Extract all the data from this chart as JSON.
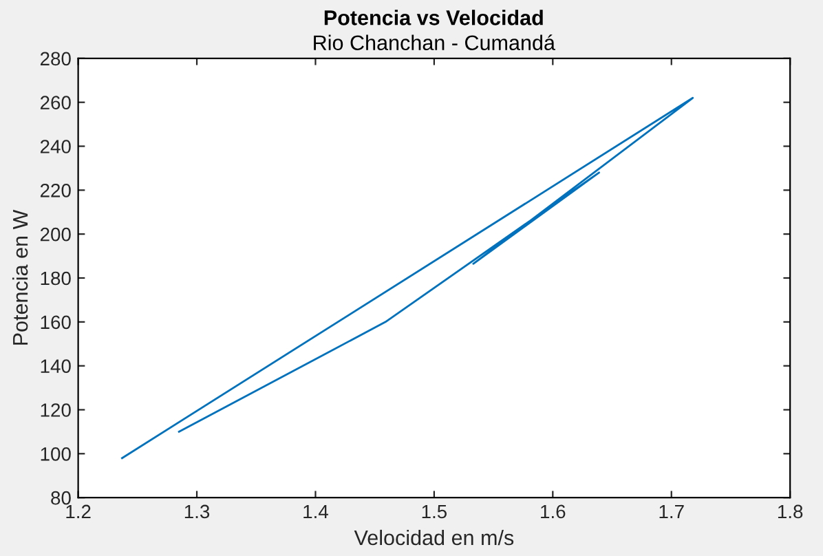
{
  "chart_data": {
    "type": "line",
    "title": "Potencia vs Velocidad",
    "subtitle": "Rio Chanchan - Cumandá",
    "xlabel": "Velocidad en m/s",
    "ylabel": "Potencia en W",
    "x": [
      1.237,
      1.718,
      1.533,
      1.639,
      1.459,
      1.285
    ],
    "series": [
      {
        "color": "#0072bd",
        "values": [
          98,
          262,
          186.5,
          228,
          160,
          110
        ]
      }
    ],
    "xlim": [
      1.2,
      1.8
    ],
    "xticks": [
      1.2,
      1.3,
      1.4,
      1.5,
      1.6,
      1.7,
      1.8
    ],
    "ylim": [
      80,
      280
    ],
    "yticks": [
      80,
      100,
      120,
      140,
      160,
      180,
      200,
      220,
      240,
      260,
      280
    ],
    "grid": false
  }
}
